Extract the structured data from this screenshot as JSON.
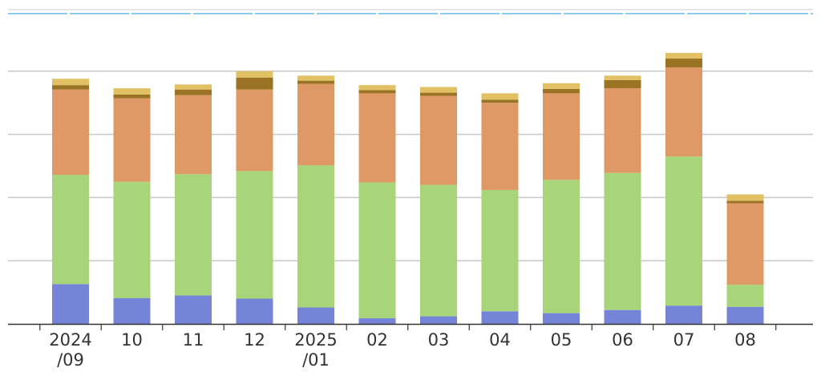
{
  "chart_data": {
    "type": "bar",
    "stacked": true,
    "title": "",
    "xlabel": "",
    "ylabel": "",
    "categories": [
      "2024/09",
      "10",
      "11",
      "12",
      "2025/01",
      "02",
      "03",
      "04",
      "05",
      "06",
      "07",
      "08"
    ],
    "category_lines": [
      [
        "2024",
        "/09"
      ],
      [
        "10"
      ],
      [
        "11"
      ],
      [
        "12"
      ],
      [
        "2025",
        "/01"
      ],
      [
        "02"
      ],
      [
        "03"
      ],
      [
        "04"
      ],
      [
        "05"
      ],
      [
        "06"
      ],
      [
        "07"
      ],
      [
        "08"
      ]
    ],
    "ylim": [
      0,
      5
    ],
    "yticks": [
      0,
      1,
      2,
      3,
      4,
      5
    ],
    "y_tick_labels_shown": false,
    "grid": true,
    "legend": "none",
    "series": [
      {
        "color": "#7684d8",
        "values": [
          0.63,
          0.41,
          0.45,
          0.4,
          0.26,
          0.09,
          0.12,
          0.2,
          0.17,
          0.22,
          0.29,
          0.27
        ]
      },
      {
        "color": "#a8d57a",
        "values": [
          1.73,
          1.84,
          1.92,
          2.02,
          2.25,
          2.15,
          2.08,
          1.92,
          2.11,
          2.17,
          2.36,
          0.35
        ]
      },
      {
        "color": "#df9966",
        "values": [
          1.35,
          1.32,
          1.25,
          1.29,
          1.29,
          1.41,
          1.41,
          1.38,
          1.37,
          1.34,
          1.41,
          1.29
        ]
      },
      {
        "color": "#9a7424",
        "values": [
          0.07,
          0.06,
          0.09,
          0.19,
          0.05,
          0.05,
          0.05,
          0.05,
          0.07,
          0.13,
          0.14,
          0.04
        ]
      },
      {
        "color": "#e2c165",
        "values": [
          0.1,
          0.1,
          0.08,
          0.1,
          0.08,
          0.08,
          0.09,
          0.1,
          0.09,
          0.07,
          0.09,
          0.1
        ]
      }
    ]
  }
}
